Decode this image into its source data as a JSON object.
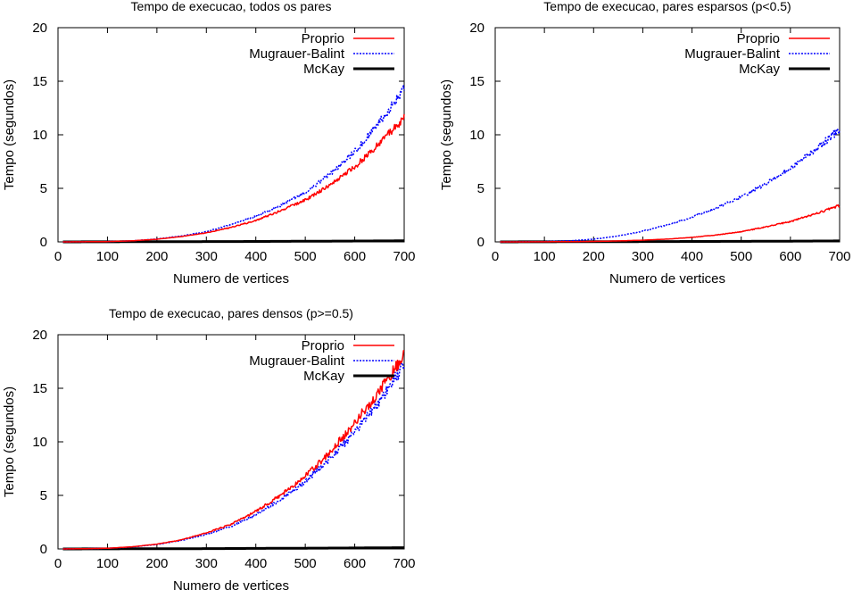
{
  "chart_data": [
    {
      "type": "line",
      "title": "Tempo de execucao, todos os pares",
      "xlabel": "Numero de vertices",
      "ylabel": "Tempo (segundos)",
      "xlim": [
        0,
        700
      ],
      "ylim": [
        0,
        20
      ],
      "xticks": [
        "0",
        "100",
        "200",
        "300",
        "400",
        "500",
        "600",
        "700"
      ],
      "yticks": [
        "0",
        "5",
        "10",
        "15",
        "20"
      ],
      "legend_position": "top-right",
      "grid": false,
      "series": [
        {
          "name": "Proprio",
          "color": "#ff0000",
          "style": "solid",
          "x": [
            10,
            50,
            100,
            150,
            200,
            250,
            300,
            350,
            400,
            450,
            500,
            550,
            600,
            650,
            700
          ],
          "values": [
            0,
            0.01,
            0.03,
            0.1,
            0.25,
            0.5,
            0.85,
            1.35,
            2.0,
            2.9,
            3.9,
            5.3,
            7.0,
            9.2,
            11.6
          ]
        },
        {
          "name": "Mugrauer-Balint",
          "color": "#0000ff",
          "style": "dotted",
          "x": [
            10,
            50,
            100,
            150,
            200,
            250,
            300,
            350,
            400,
            450,
            500,
            550,
            600,
            650,
            700
          ],
          "values": [
            0,
            0.01,
            0.03,
            0.1,
            0.27,
            0.55,
            0.95,
            1.6,
            2.4,
            3.4,
            4.6,
            6.3,
            8.4,
            11.2,
            14.2
          ]
        },
        {
          "name": "McKay",
          "color": "#000000",
          "style": "bold",
          "x": [
            10,
            100,
            200,
            300,
            400,
            500,
            600,
            700
          ],
          "values": [
            0,
            0.01,
            0.02,
            0.03,
            0.04,
            0.06,
            0.08,
            0.1
          ]
        }
      ]
    },
    {
      "type": "line",
      "title": "Tempo de execucao, pares esparsos (p<0.5)",
      "xlabel": "Numero de vertices",
      "ylabel": "Tempo (segundos)",
      "xlim": [
        0,
        700
      ],
      "ylim": [
        0,
        20
      ],
      "xticks": [
        "0",
        "100",
        "200",
        "300",
        "400",
        "500",
        "600",
        "700"
      ],
      "yticks": [
        "0",
        "5",
        "10",
        "15",
        "20"
      ],
      "legend_position": "top-right",
      "grid": false,
      "series": [
        {
          "name": "Proprio",
          "color": "#ff0000",
          "style": "solid",
          "x": [
            10,
            50,
            100,
            150,
            200,
            250,
            300,
            350,
            400,
            450,
            500,
            550,
            600,
            650,
            700
          ],
          "values": [
            0,
            0,
            0.01,
            0.02,
            0.04,
            0.09,
            0.16,
            0.26,
            0.42,
            0.65,
            0.95,
            1.4,
            1.9,
            2.6,
            3.4
          ]
        },
        {
          "name": "Mugrauer-Balint",
          "color": "#0000ff",
          "style": "dotted",
          "x": [
            10,
            50,
            100,
            150,
            200,
            250,
            300,
            350,
            400,
            450,
            500,
            550,
            600,
            650,
            700
          ],
          "values": [
            0,
            0.01,
            0.03,
            0.1,
            0.25,
            0.55,
            1.0,
            1.6,
            2.3,
            3.2,
            4.2,
            5.4,
            6.9,
            8.6,
            10.5
          ]
        },
        {
          "name": "McKay",
          "color": "#000000",
          "style": "bold",
          "x": [
            10,
            100,
            200,
            300,
            400,
            500,
            600,
            700
          ],
          "values": [
            0,
            0.01,
            0.02,
            0.03,
            0.04,
            0.05,
            0.07,
            0.09
          ]
        }
      ]
    },
    {
      "type": "line",
      "title": "Tempo de execucao, pares densos (p>=0.5)",
      "xlabel": "Numero de vertices",
      "ylabel": "Tempo (segundos)",
      "xlim": [
        0,
        700
      ],
      "ylim": [
        0,
        20
      ],
      "xticks": [
        "0",
        "100",
        "200",
        "300",
        "400",
        "500",
        "600",
        "700"
      ],
      "yticks": [
        "0",
        "5",
        "10",
        "15",
        "20"
      ],
      "legend_position": "top-right",
      "grid": false,
      "series": [
        {
          "name": "Proprio",
          "color": "#ff0000",
          "style": "solid",
          "x": [
            10,
            50,
            100,
            150,
            200,
            250,
            300,
            350,
            400,
            450,
            500,
            550,
            600,
            650,
            700
          ],
          "values": [
            0,
            0.02,
            0.06,
            0.2,
            0.45,
            0.85,
            1.5,
            2.3,
            3.5,
            5.0,
            6.8,
            9.0,
            11.8,
            14.8,
            18.0
          ]
        },
        {
          "name": "Mugrauer-Balint",
          "color": "#0000ff",
          "style": "dotted",
          "x": [
            10,
            50,
            100,
            150,
            200,
            250,
            300,
            350,
            400,
            450,
            500,
            550,
            600,
            650,
            700
          ],
          "values": [
            0,
            0.02,
            0.06,
            0.18,
            0.42,
            0.8,
            1.35,
            2.1,
            3.2,
            4.6,
            6.3,
            8.4,
            10.9,
            13.8,
            17.2
          ]
        },
        {
          "name": "McKay",
          "color": "#000000",
          "style": "bold",
          "x": [
            10,
            100,
            200,
            300,
            400,
            500,
            600,
            700
          ],
          "values": [
            0,
            0.01,
            0.02,
            0.03,
            0.05,
            0.07,
            0.09,
            0.12
          ]
        }
      ]
    }
  ]
}
